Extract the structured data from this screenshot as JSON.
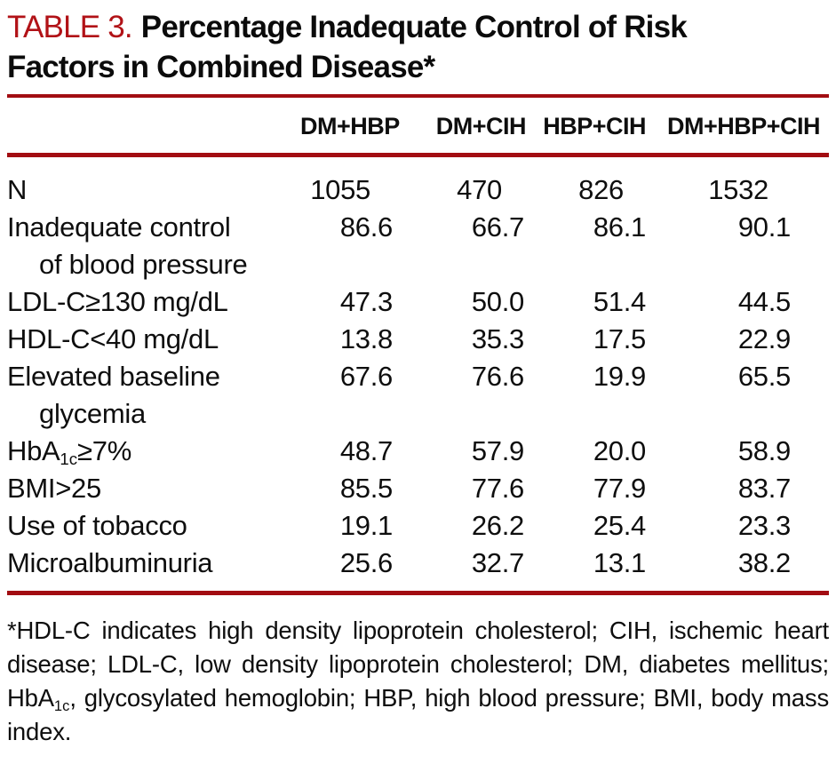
{
  "colors": {
    "title_label_red": "#b11217",
    "rule_red": "#a20d12",
    "text": "#0e0e0e"
  },
  "title": {
    "label": "TABLE 3.",
    "line1": "Percentage Inadequate Control of Risk",
    "line2": "Factors in Combined Disease*"
  },
  "table": {
    "columns": [
      "DM+HBP",
      "DM+CIH",
      "HBP+CIH",
      "DM+HBP+CIH"
    ],
    "rows": [
      {
        "label": [
          {
            "t": "text",
            "v": "N"
          }
        ],
        "values": [
          "1055",
          "470",
          "826",
          "1532"
        ],
        "integer": true
      },
      {
        "label": [
          {
            "t": "text",
            "v": "Inadequate control"
          }
        ],
        "label2": "of blood pressure",
        "values": [
          "86.6",
          "66.7",
          "86.1",
          "90.1"
        ]
      },
      {
        "label": [
          {
            "t": "text",
            "v": "LDL-C≥130 mg/dL"
          }
        ],
        "values": [
          "47.3",
          "50.0",
          "51.4",
          "44.5"
        ]
      },
      {
        "label": [
          {
            "t": "text",
            "v": "HDL-C<40 mg/dL"
          }
        ],
        "values": [
          "13.8",
          "35.3",
          "17.5",
          "22.9"
        ]
      },
      {
        "label": [
          {
            "t": "text",
            "v": "Elevated baseline"
          }
        ],
        "label2": "glycemia",
        "values": [
          "67.6",
          "76.6",
          "19.9",
          "65.5"
        ]
      },
      {
        "label": [
          {
            "t": "text",
            "v": "HbA"
          },
          {
            "t": "sub",
            "v": "1c"
          },
          {
            "t": "text",
            "v": "≥7%"
          }
        ],
        "values": [
          "48.7",
          "57.9",
          "20.0",
          "58.9"
        ]
      },
      {
        "label": [
          {
            "t": "text",
            "v": "BMI>25"
          }
        ],
        "values": [
          "85.5",
          "77.6",
          "77.9",
          "83.7"
        ]
      },
      {
        "label": [
          {
            "t": "text",
            "v": "Use of tobacco"
          }
        ],
        "values": [
          "19.1",
          "26.2",
          "25.4",
          "23.3"
        ]
      },
      {
        "label": [
          {
            "t": "text",
            "v": "Microalbuminuria"
          }
        ],
        "values": [
          "25.6",
          "32.7",
          "13.1",
          "38.2"
        ]
      }
    ]
  },
  "footnote": {
    "lines": [
      [
        {
          "t": "text",
          "v": "*HDL-C indicates high density lipoprotein cholesterol; CIH, ischemic heart"
        }
      ],
      [
        {
          "t": "text",
          "v": "disease; LDL-C, low density lipoprotein cholesterol; DM, diabetes mellitus;"
        }
      ],
      [
        {
          "t": "text",
          "v": "HbA"
        },
        {
          "t": "sub",
          "v": "1c"
        },
        {
          "t": "text",
          "v": ", glycosylated hemoglobin; HBP, high blood pressure; BMI, body mass"
        }
      ],
      [
        {
          "t": "text",
          "v": "index."
        }
      ]
    ]
  }
}
